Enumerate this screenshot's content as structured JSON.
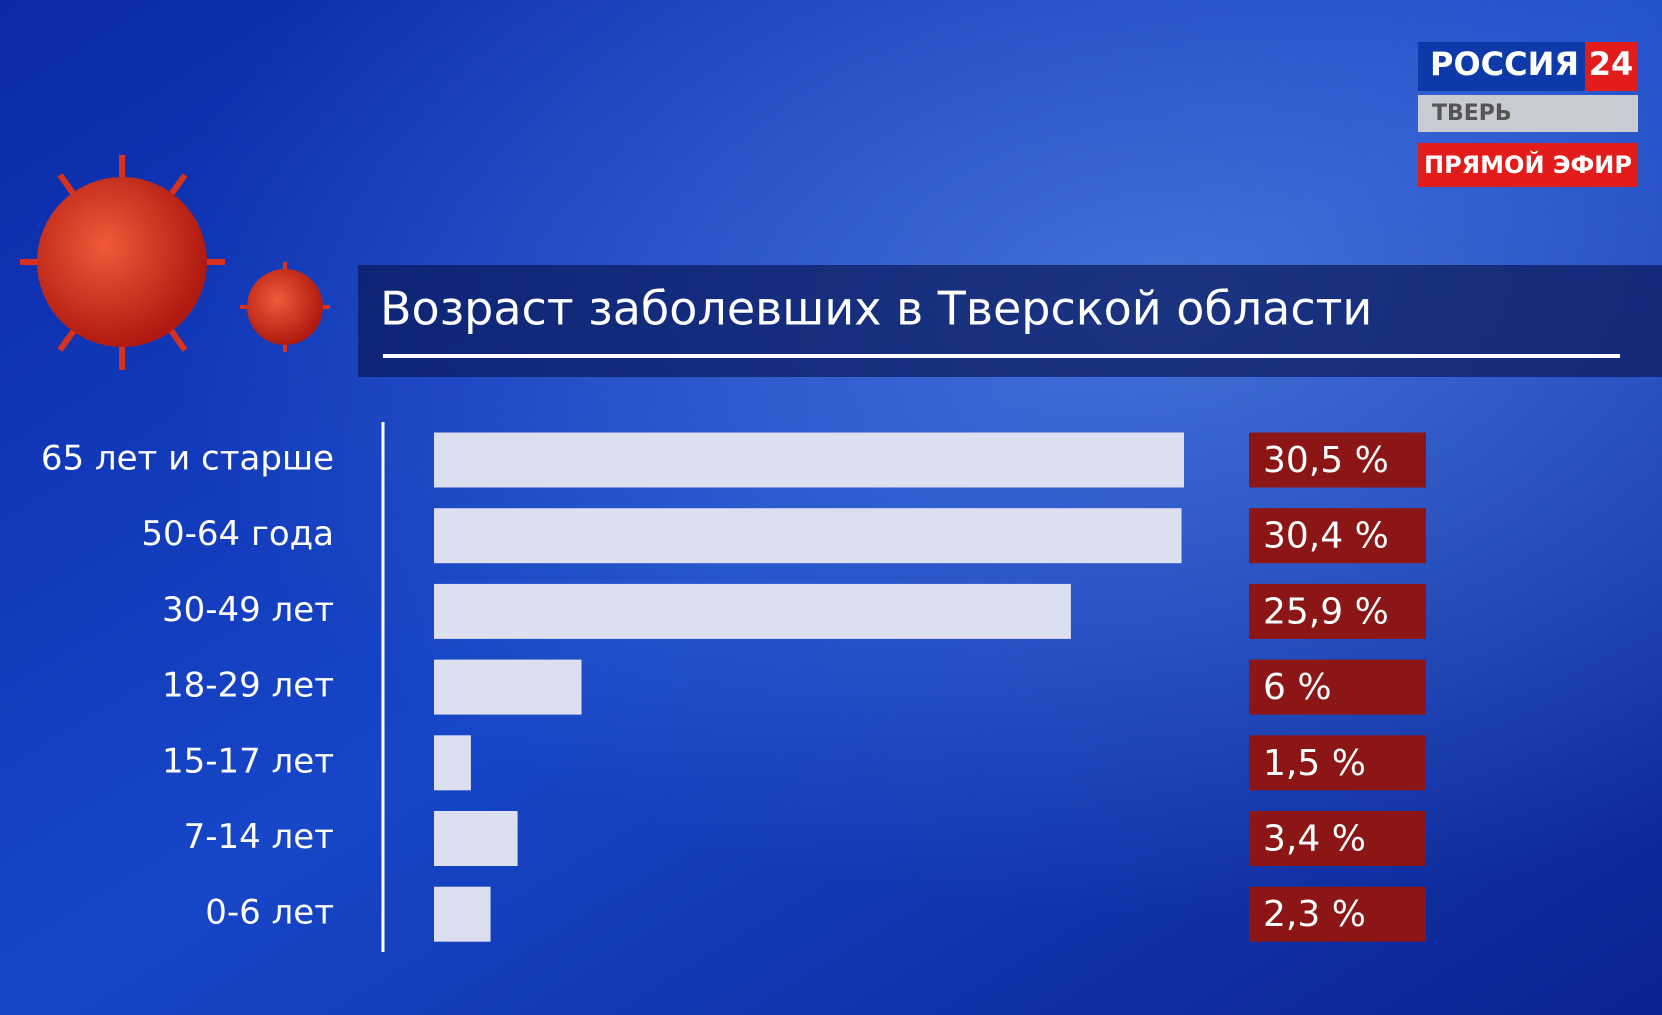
{
  "logo": {
    "channel": "РОССИЯ",
    "number": "24",
    "city": "ТВЕРЬ",
    "live": "ПРЯМОЙ ЭФИР"
  },
  "chart_data": {
    "type": "bar",
    "orientation": "horizontal",
    "title": "Возраст заболевших в Тверской области",
    "categories": [
      "65 лет и старше",
      "50-64 года",
      "30-49 лет",
      "18-29 лет",
      "15-17 лет",
      "7-14 лет",
      "0-6 лет"
    ],
    "values": [
      30.5,
      30.4,
      25.9,
      6,
      1.5,
      3.4,
      2.3
    ],
    "value_labels": [
      "30,5 %",
      "30,4 %",
      "25,9 %",
      "6 %",
      "1,5 %",
      "3,4 %",
      "2,3 %"
    ],
    "color": "#dcdff0",
    "label_color": "#8c1515"
  }
}
